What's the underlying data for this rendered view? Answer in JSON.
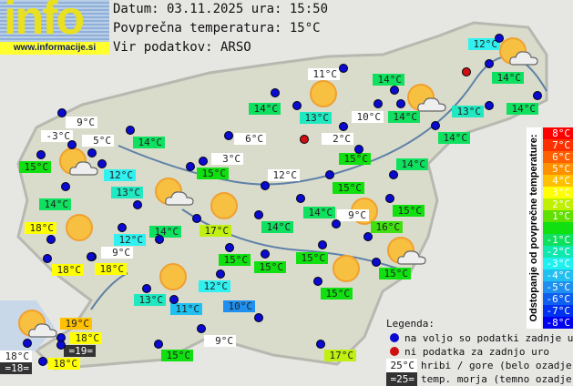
{
  "logo": {
    "text": "info",
    "url": "www.informacije.si"
  },
  "header": {
    "date_line": "Datum: 03.11.2025 ura: 15:50",
    "avg_line": "Povprečna temperatura: 15°C",
    "source_line": "Vir podatkov: ARSO"
  },
  "colors": {
    "station_available": "#0a0ad0",
    "station_missing": "#d01010",
    "hill_bg": "#ffffff",
    "sea_bg": "#333333"
  },
  "stations": [
    {
      "t": "9°C",
      "bg": "#ffffff"
    },
    {
      "t": "-3°C",
      "bg": "#ffffff"
    },
    {
      "t": "5°C",
      "bg": "#ffffff"
    },
    {
      "t": "14°C",
      "bg": "#10e060"
    },
    {
      "t": "15°C",
      "bg": "#10e010"
    },
    {
      "t": "12°C",
      "bg": "#30f0f0"
    },
    {
      "t": "13°C",
      "bg": "#20e8c0"
    },
    {
      "t": "14°C",
      "bg": "#10e060"
    },
    {
      "t": "18°C",
      "bg": "#ffff00"
    },
    {
      "t": "14°C",
      "bg": "#10e060"
    },
    {
      "t": "12°C",
      "bg": "#30f0f0"
    },
    {
      "t": "9°C",
      "bg": "#ffffff"
    },
    {
      "t": "18°C",
      "bg": "#ffff00"
    },
    {
      "t": "18°C",
      "bg": "#ffff00"
    },
    {
      "t": "11°C",
      "bg": "#ffffff"
    },
    {
      "t": "14°C",
      "bg": "#10e060"
    },
    {
      "t": "13°C",
      "bg": "#20e8c0"
    },
    {
      "t": "14°C",
      "bg": "#10e060"
    },
    {
      "t": "10°C",
      "bg": "#ffffff"
    },
    {
      "t": "14°C",
      "bg": "#10e060"
    },
    {
      "t": "13°C",
      "bg": "#20e8c0"
    },
    {
      "t": "14°C",
      "bg": "#10e060"
    },
    {
      "t": "14°C",
      "bg": "#10e060"
    },
    {
      "t": "14°C",
      "bg": "#10e060"
    },
    {
      "t": "2°C",
      "bg": "#ffffff"
    },
    {
      "t": "6°C",
      "bg": "#ffffff"
    },
    {
      "t": "3°C",
      "bg": "#ffffff"
    },
    {
      "t": "15°C",
      "bg": "#10e010"
    },
    {
      "t": "15°C",
      "bg": "#10e010"
    },
    {
      "t": "14°C",
      "bg": "#10e060"
    },
    {
      "t": "12°C",
      "bg": "#ffffff"
    },
    {
      "t": "15°C",
      "bg": "#10e010"
    },
    {
      "t": "14°C",
      "bg": "#10e060"
    },
    {
      "t": "9°C",
      "bg": "#ffffff"
    },
    {
      "t": "15°C",
      "bg": "#10e010"
    },
    {
      "t": "16°C",
      "bg": "#40e010"
    },
    {
      "t": "17°C",
      "bg": "#c0f010"
    },
    {
      "t": "14°C",
      "bg": "#10e060"
    },
    {
      "t": "15°C",
      "bg": "#10e010"
    },
    {
      "t": "15°C",
      "bg": "#10e010"
    },
    {
      "t": "15°C",
      "bg": "#10e010"
    },
    {
      "t": "15°C",
      "bg": "#10e010"
    },
    {
      "t": "12°C",
      "bg": "#30f0f0"
    },
    {
      "t": "15°C",
      "bg": "#10e010"
    },
    {
      "t": "12°C",
      "bg": "#30f0f0"
    },
    {
      "t": "13°C",
      "bg": "#20e8c0"
    },
    {
      "t": "11°C",
      "bg": "#20c0f0"
    },
    {
      "t": "10°C",
      "bg": "#2090f0"
    },
    {
      "t": "19°C",
      "bg": "#ffc000"
    },
    {
      "t": "18°C",
      "bg": "#ffff00"
    },
    {
      "t": "=19=",
      "bg": "#333333"
    },
    {
      "t": "18°C",
      "bg": "#ffffff"
    },
    {
      "t": "=18=",
      "bg": "#333333"
    },
    {
      "t": "18°C",
      "bg": "#ffff00"
    },
    {
      "t": "15°C",
      "bg": "#10e010"
    },
    {
      "t": "9°C",
      "bg": "#ffffff"
    },
    {
      "t": "17°C",
      "bg": "#c0f010"
    }
  ],
  "scale": {
    "title": "Odstopanje od povprečne temperature:",
    "items": [
      {
        "t": "8°C",
        "c": "#ff0000"
      },
      {
        "t": "7°C",
        "c": "#ff3000"
      },
      {
        "t": "6°C",
        "c": "#ff6000"
      },
      {
        "t": "5°C",
        "c": "#ff9000"
      },
      {
        "t": "4°C",
        "c": "#ffc000"
      },
      {
        "t": "3°C",
        "c": "#ffff00"
      },
      {
        "t": "2°C",
        "c": "#c0f000"
      },
      {
        "t": "1°C",
        "c": "#60e000"
      },
      {
        "t": "",
        "c": "#10e010"
      },
      {
        "t": "-1°C",
        "c": "#10e060"
      },
      {
        "t": "-2°C",
        "c": "#10e8b0"
      },
      {
        "t": "-3°C",
        "c": "#20f0f0"
      },
      {
        "t": "-4°C",
        "c": "#20c0f0"
      },
      {
        "t": "-5°C",
        "c": "#2090f0"
      },
      {
        "t": "-6°C",
        "c": "#1060f0"
      },
      {
        "t": "-7°C",
        "c": "#0030f0"
      },
      {
        "t": "-8°C",
        "c": "#0000f0"
      }
    ]
  },
  "legend": {
    "title": "Legenda:",
    "available": "na voljo so podatki zadnje ure",
    "missing": "ni podatka za zadnjo uro",
    "hill_sample": "25°C",
    "hill_text": "hribi / gore (belo ozadje)",
    "sea_sample": "=25=",
    "sea_text": "temp. morja (temno ozadje)"
  }
}
